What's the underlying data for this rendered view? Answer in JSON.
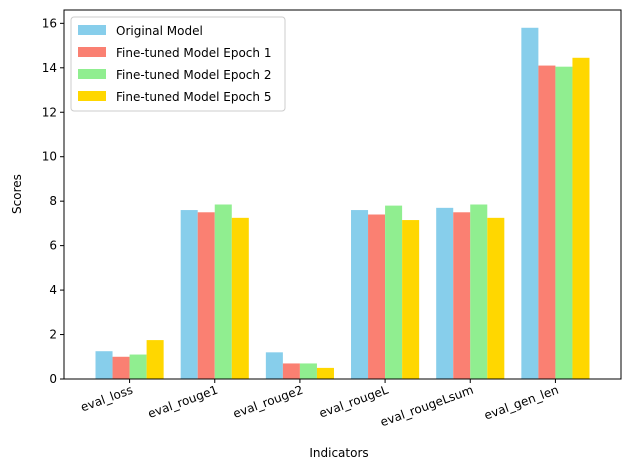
{
  "chart_data": {
    "type": "bar",
    "xlabel": "Indicators",
    "ylabel": "Scores",
    "ylim": [
      0,
      16.6
    ],
    "yticks": [
      0,
      2,
      4,
      6,
      8,
      10,
      12,
      14,
      16
    ],
    "grid": false,
    "legend_position": "top-left",
    "categories": [
      "eval_loss",
      "eval_rouge1",
      "eval_rouge2",
      "eval_rougeL",
      "eval_rougeLsum",
      "eval_gen_len"
    ],
    "series": [
      {
        "name": "Original Model",
        "color": "#87ceeb",
        "values": [
          1.25,
          7.6,
          1.2,
          7.6,
          7.7,
          15.8
        ]
      },
      {
        "name": "Fine-tuned Model Epoch 1",
        "color": "#fa8072",
        "values": [
          1.0,
          7.5,
          0.7,
          7.4,
          7.5,
          14.1
        ]
      },
      {
        "name": "Fine-tuned Model Epoch 2",
        "color": "#90ee90",
        "values": [
          1.1,
          7.85,
          0.7,
          7.8,
          7.85,
          14.05
        ]
      },
      {
        "name": "Fine-tuned Model Epoch 5",
        "color": "#ffd700",
        "values": [
          1.75,
          7.25,
          0.5,
          7.15,
          7.25,
          14.45
        ]
      }
    ]
  }
}
